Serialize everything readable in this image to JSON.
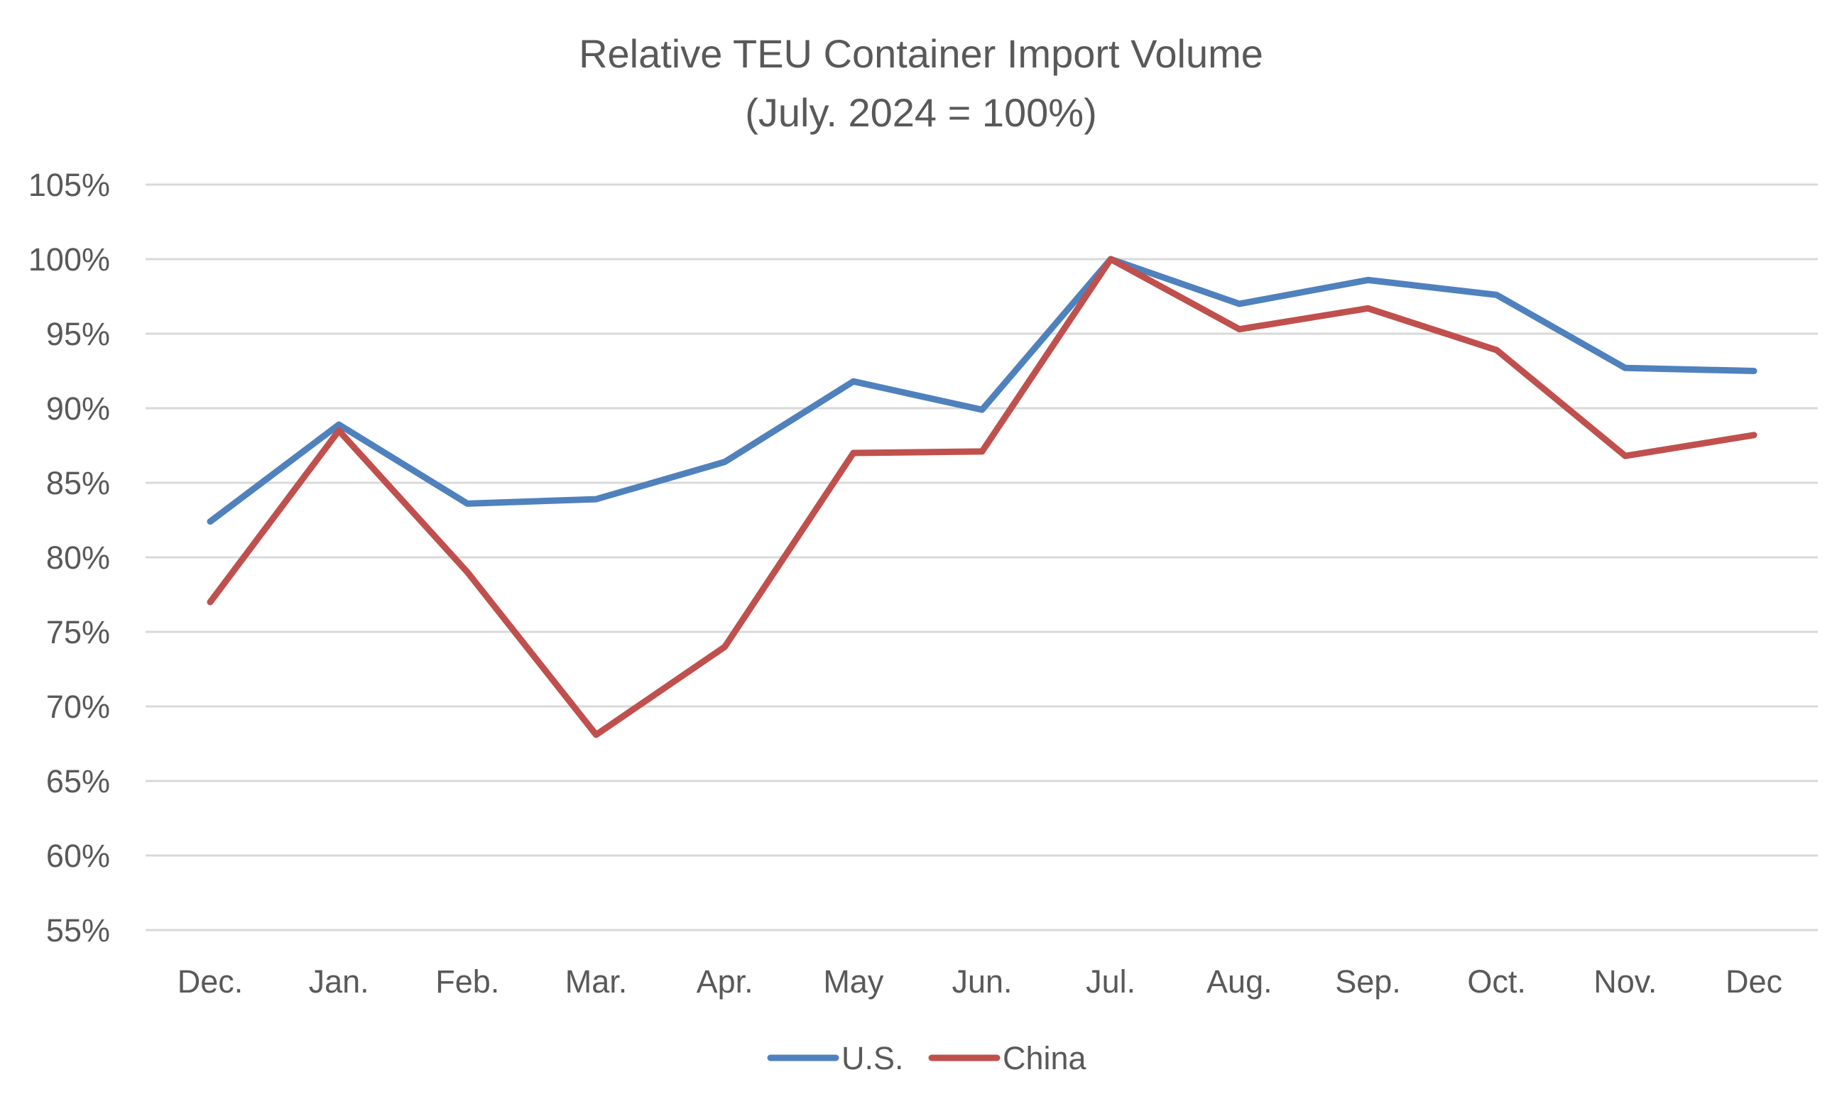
{
  "chart_data": {
    "type": "line",
    "title": "Relative TEU Container Import  Volume",
    "subtitle": "(July. 2024 = 100%)",
    "xlabel": "",
    "ylabel": "",
    "categories": [
      "Dec.",
      "Jan.",
      "Feb.",
      "Mar.",
      "Apr.",
      "May",
      "Jun.",
      "Jul.",
      "Aug.",
      "Sep.",
      "Oct.",
      "Nov.",
      "Dec"
    ],
    "ylim": [
      55,
      105
    ],
    "yticks": [
      55,
      60,
      65,
      70,
      75,
      80,
      85,
      90,
      95,
      100,
      105
    ],
    "ytick_labels": [
      "55%",
      "60%",
      "65%",
      "70%",
      "75%",
      "80%",
      "85%",
      "90%",
      "95%",
      "100%",
      "105%"
    ],
    "grid": true,
    "legend_position": "bottom",
    "series": [
      {
        "name": "U.S.",
        "color": "#4F81BD",
        "values": [
          82.4,
          88.9,
          83.6,
          83.9,
          86.4,
          91.8,
          89.9,
          100.0,
          97.0,
          98.6,
          97.6,
          92.7,
          92.5
        ]
      },
      {
        "name": "China",
        "color": "#C0504D",
        "values": [
          77.0,
          88.5,
          79.0,
          68.1,
          74.0,
          87.0,
          87.1,
          100.0,
          95.3,
          96.7,
          93.9,
          86.8,
          88.2
        ]
      }
    ]
  }
}
